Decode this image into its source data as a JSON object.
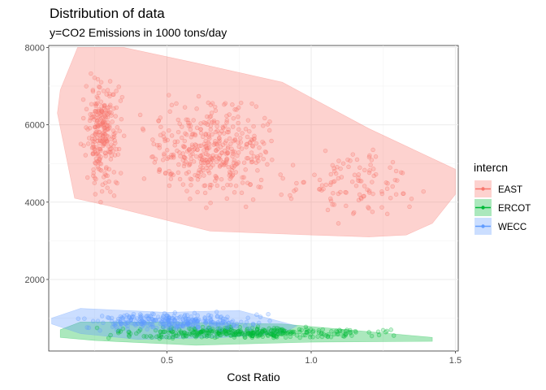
{
  "chart_data": {
    "type": "scatter",
    "title": "Distribution of data",
    "subtitle": "y=CO2 Emissions in 1000 tons/day",
    "xlabel": "Cost Ratio",
    "ylabel": "",
    "xlim": [
      0.09,
      1.51
    ],
    "ylim": [
      150,
      8050
    ],
    "x_ticks": [
      0.5,
      1.0,
      1.5
    ],
    "x_tick_labels": [
      "0.5",
      "1.0",
      "1.5"
    ],
    "y_ticks": [
      2000,
      4000,
      6000,
      8000
    ],
    "y_tick_labels": [
      "2000",
      "4000",
      "6000",
      "8000"
    ],
    "grid": true,
    "legend": {
      "title": "intercn",
      "position": "right"
    },
    "series": [
      {
        "name": "EAST",
        "color": "#F8766D",
        "hull": [
          [
            0.19,
            8000
          ],
          [
            0.35,
            8000
          ],
          [
            0.6,
            7600
          ],
          [
            0.9,
            7100
          ],
          [
            1.2,
            5900
          ],
          [
            1.5,
            4850
          ],
          [
            1.5,
            4200
          ],
          [
            1.42,
            3450
          ],
          [
            1.33,
            3150
          ],
          [
            1.2,
            3100
          ],
          [
            1.0,
            3150
          ],
          [
            0.65,
            3250
          ],
          [
            0.3,
            3900
          ],
          [
            0.18,
            4100
          ],
          [
            0.12,
            6300
          ],
          [
            0.13,
            6900
          ]
        ],
        "clusters": [
          {
            "x": [
              0.19,
              0.36
            ],
            "y": [
              3900,
              7700
            ],
            "n": 260
          },
          {
            "x": [
              0.36,
              0.95
            ],
            "y": [
              3600,
              7000
            ],
            "n": 400
          },
          {
            "x": [
              0.85,
              1.44
            ],
            "y": [
              3250,
              5800
            ],
            "n": 110
          }
        ]
      },
      {
        "name": "ERCOT",
        "color": "#00BA38",
        "hull": [
          [
            0.13,
            700
          ],
          [
            0.2,
            900
          ],
          [
            0.5,
            900
          ],
          [
            0.9,
            850
          ],
          [
            1.2,
            650
          ],
          [
            1.42,
            500
          ],
          [
            1.42,
            400
          ],
          [
            1.0,
            380
          ],
          [
            0.6,
            300
          ],
          [
            0.25,
            420
          ],
          [
            0.13,
            500
          ]
        ],
        "clusters": [
          {
            "x": [
              0.16,
              1.38
            ],
            "y": [
              430,
              820
            ],
            "n": 360
          }
        ]
      },
      {
        "name": "WECC",
        "color": "#619CFF",
        "hull": [
          [
            0.1,
            1000
          ],
          [
            0.2,
            1250
          ],
          [
            0.5,
            1150
          ],
          [
            0.75,
            1200
          ],
          [
            0.95,
            800
          ],
          [
            0.9,
            600
          ],
          [
            0.7,
            500
          ],
          [
            0.4,
            450
          ],
          [
            0.2,
            600
          ],
          [
            0.1,
            850
          ]
        ],
        "clusters": [
          {
            "x": [
              0.12,
              0.92
            ],
            "y": [
              620,
              1200
            ],
            "n": 300
          }
        ]
      }
    ]
  }
}
